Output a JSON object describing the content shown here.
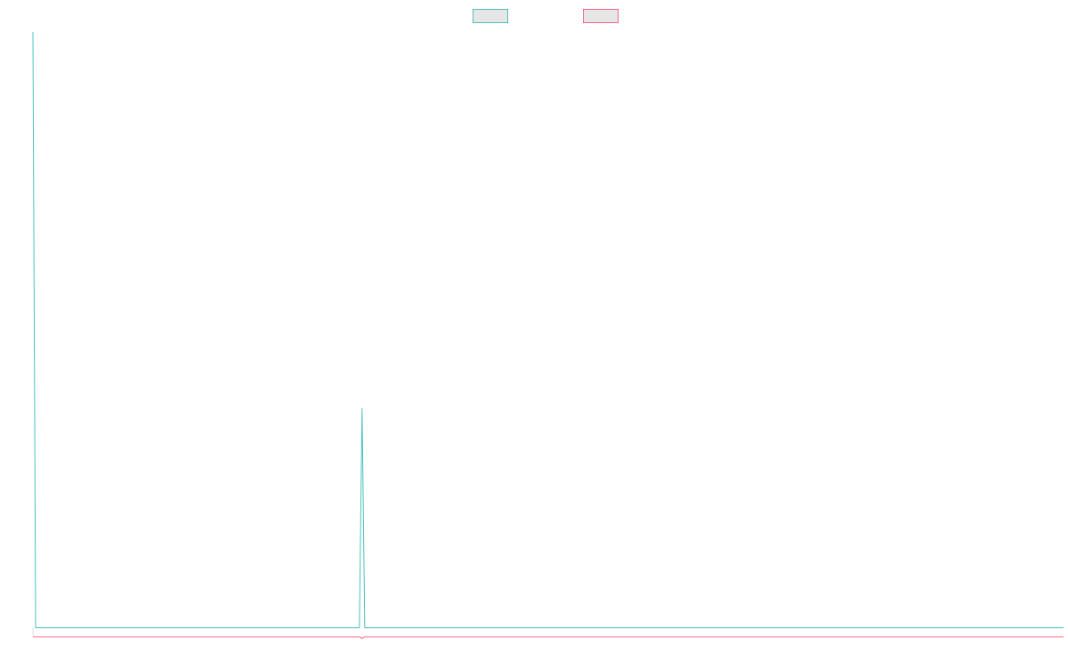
{
  "chart_data": {
    "type": "line",
    "xlim": [
      0,
      382
    ],
    "ylim": [
      0,
      100
    ],
    "legend": "top",
    "series": [
      {
        "color": "#4bc0c0",
        "fill": "#e6e6e6",
        "x": [
          0,
          1,
          121,
          122,
          123,
          382
        ],
        "values": [
          100,
          1.8,
          1.8,
          38,
          1.8,
          1.8
        ]
      },
      {
        "color": "#ff6384",
        "fill": "#e6e6e6",
        "x": [
          0,
          121,
          122,
          123,
          382
        ],
        "values": [
          0.3,
          0.3,
          0,
          0.3,
          0.3
        ]
      }
    ]
  }
}
